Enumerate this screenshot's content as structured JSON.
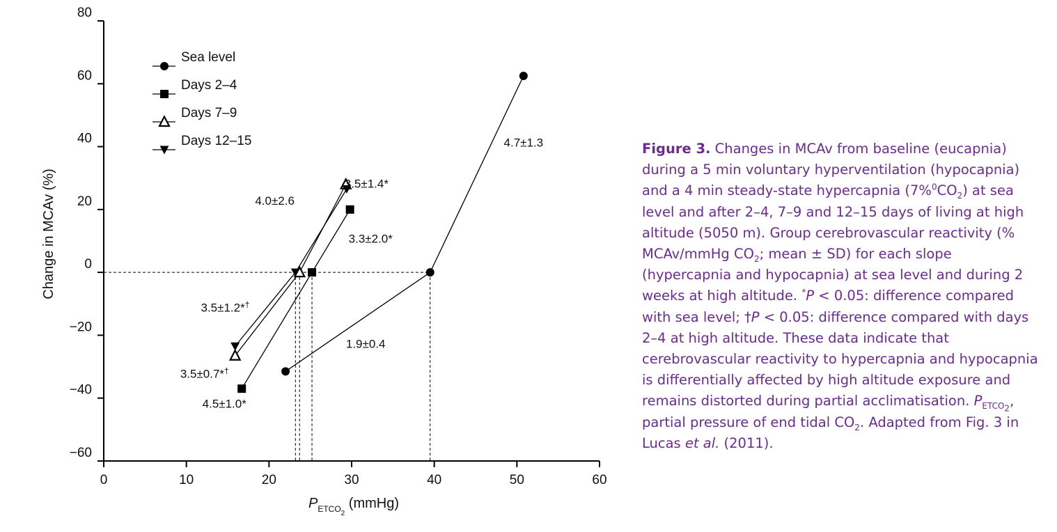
{
  "chart_data": {
    "type": "line",
    "xlabel": {
      "symbol": "P",
      "subscript": "ETCO",
      "subsub": "2",
      "unit": " (mmHg)"
    },
    "ylabel": "Change in MCAv (%)",
    "xlim": [
      0,
      60
    ],
    "ylim": [
      -60,
      80
    ],
    "xticks": [
      0,
      10,
      20,
      30,
      40,
      50,
      60
    ],
    "yticks": [
      80,
      60,
      40,
      20,
      0,
      -20,
      -40,
      -60
    ],
    "ytick_labels": [
      "80",
      "60",
      "40",
      "20",
      "0",
      "−20",
      "−40",
      "−60"
    ],
    "grid": false,
    "legend_position": "top-left",
    "series": [
      {
        "name": "Sea level",
        "marker": "circle",
        "x": [
          22,
          39.5,
          50.8
        ],
        "y": [
          -31.5,
          0,
          62.5
        ]
      },
      {
        "name": "Days 2–4",
        "marker": "square",
        "x": [
          16.7,
          25.2,
          29.8
        ],
        "y": [
          -37,
          0,
          20
        ]
      },
      {
        "name": "Days 7–9",
        "marker": "triangle-up-open",
        "x": [
          15.9,
          23.7,
          29.3
        ],
        "y": [
          -26.5,
          0,
          28
        ]
      },
      {
        "name": "Days 12–15",
        "marker": "triangle-down",
        "x": [
          15.9,
          23.2,
          29.4
        ],
        "y": [
          -23.5,
          0,
          26.5
        ]
      }
    ],
    "reference_lines": {
      "horizontal_y": 0,
      "vertical_x": [
        23.2,
        23.7,
        25.2,
        39.5
      ]
    },
    "annotations": [
      {
        "text": "4.7±1.3",
        "x": 50.8,
        "y": 40
      },
      {
        "text": "3.5±1.4*",
        "x": 31.8,
        "y": 27
      },
      {
        "text": "4.0±2.6",
        "x": 20.7,
        "y": 21.5
      },
      {
        "text": "3.3±2.0*",
        "x": 32.3,
        "y": 9.5
      },
      {
        "text": "3.5±1.2*†",
        "x": 14.7,
        "y": -12.5
      },
      {
        "text": "1.9±0.4",
        "x": 31.7,
        "y": -24
      },
      {
        "text": "3.5±0.7*†",
        "x": 12.2,
        "y": -33.5
      },
      {
        "text": "4.5±1.0*",
        "x": 14.6,
        "y": -43
      }
    ]
  },
  "caption": {
    "label": "Figure 3.",
    "p1": " Changes in MCAv from baseline (eucapnia) during a 5 min voluntary hyperventilation (hypocapnia) and a 4 min steady-state hypercapnia (7%",
    "p1b": "CO",
    "p1c": ") at sea level and after 2–4, 7–9 and 12–15 days of living at high altitude (5050 m). Group cerebrovascular reactivity (% MCAv/mmHg CO",
    "p2": "; mean ± SD) for each slope (hypercapnia and hypocapnia) at sea level and during 2 weeks at high altitude. ",
    "p_star": "*",
    "p_P1": "P",
    "p3": " < 0.05: difference compared with sea level; †",
    "p_P2": "P",
    "p4": " < 0.05: difference compared with days 2–4 at high altitude. These data indicate that cerebrovascular reactivity to hypercapnia and hypocapnia is differentially affected by high altitude exposure and remains distorted during partial acclimatisation. ",
    "p_P3": "P",
    "p_sub": "ETCO",
    "p_subsub": "2",
    "p5": ", partial pressure of end tidal CO",
    "p6": ". Adapted from Fig. 3 in Lucas ",
    "p_etal": "et al.",
    "p7": " (2011).",
    "sub2": "2",
    "mark": "0"
  }
}
